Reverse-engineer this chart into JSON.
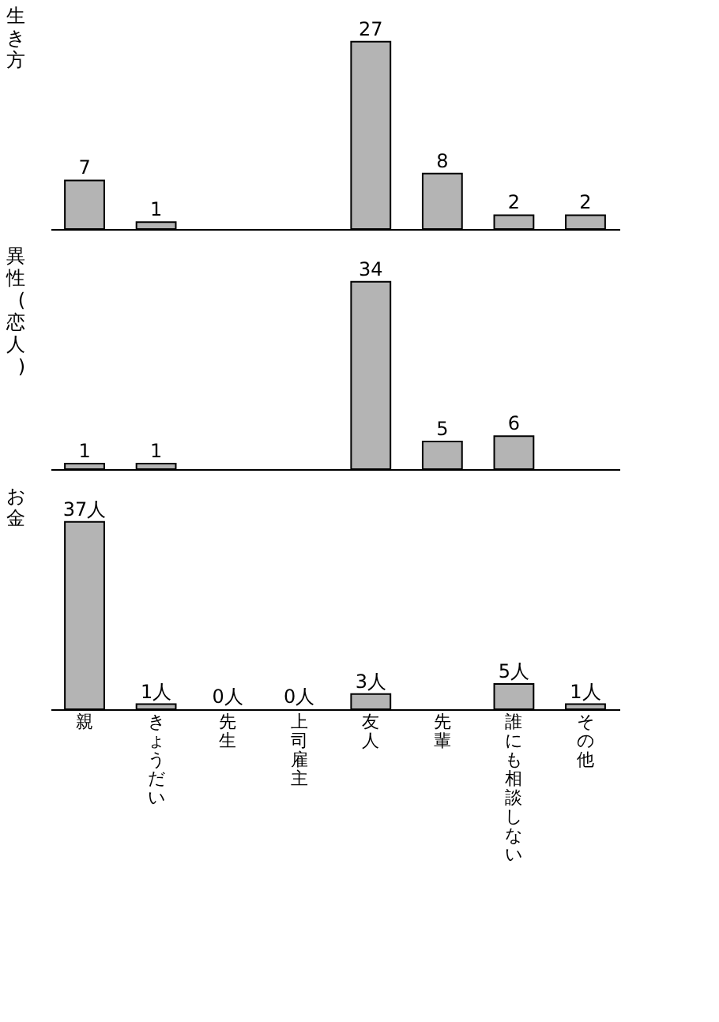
{
  "chart_data": [
    {
      "type": "bar",
      "title": "生き方",
      "categories": [
        "親",
        "きょうだい",
        "先生",
        "上司雇主",
        "友人",
        "先輩",
        "誰にも相談しない",
        "その他"
      ],
      "values": [
        7,
        1,
        null,
        null,
        27,
        8,
        2,
        2
      ],
      "color": "#b4b4b4",
      "data_labels": true,
      "tick_labels": false
    },
    {
      "type": "bar",
      "title": "異性(恋人)",
      "categories": [
        "親",
        "きょうだい",
        "先生",
        "上司雇主",
        "友人",
        "先輩",
        "誰にも相談しない",
        "その他"
      ],
      "values": [
        1,
        1,
        null,
        null,
        34,
        5,
        6,
        null
      ],
      "color": "#b4b4b4",
      "data_labels": true,
      "tick_labels": false
    },
    {
      "type": "bar",
      "title": "お金",
      "categories": [
        "親",
        "きょうだい",
        "先生",
        "上司雇主",
        "友人",
        "先輩",
        "誰にも相談しない",
        "その他"
      ],
      "values": [
        37,
        1,
        0,
        0,
        3,
        null,
        5,
        1
      ],
      "value_labels": [
        "37人",
        "1人",
        "0人",
        "0人",
        "3人",
        null,
        "5人",
        "1人"
      ],
      "color": "#b4b4b4",
      "tick_labels": "x"
    }
  ]
}
